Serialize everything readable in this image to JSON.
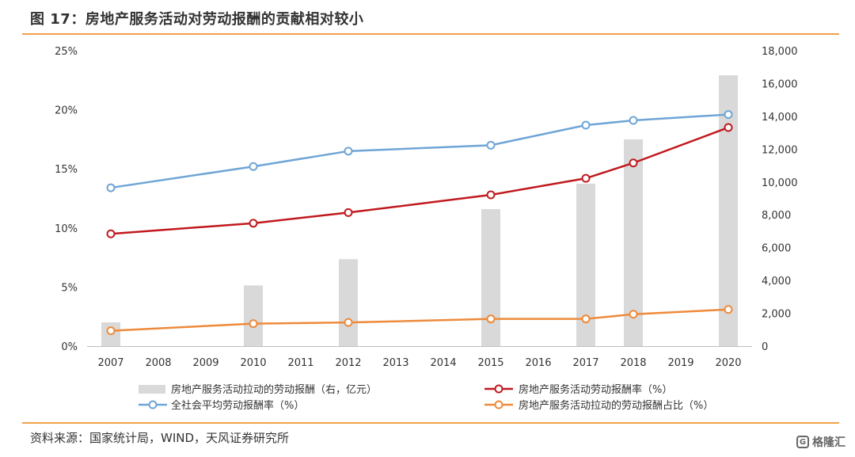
{
  "figure": {
    "title": "图 17：房地产服务活动对劳动报酬的贡献相对较小",
    "source": "资料来源：国家统计局，WIND，天风证券研究所",
    "watermark": "格隆汇",
    "colors": {
      "rule": "#f0a24a"
    }
  },
  "chart_data": {
    "type": "bar",
    "categories": [
      "2007",
      "2008",
      "2009",
      "2010",
      "2011",
      "2012",
      "2013",
      "2014",
      "2015",
      "2016",
      "2017",
      "2018",
      "2019",
      "2020"
    ],
    "x_ticks": [
      "2007",
      "2008",
      "2009",
      "2010",
      "2011",
      "2012",
      "2013",
      "2014",
      "2015",
      "2016",
      "2017",
      "2018",
      "2019",
      "2020"
    ],
    "y_left": {
      "ylim": [
        0,
        25
      ],
      "ticks": [
        "0%",
        "5%",
        "10%",
        "15%",
        "20%",
        "25%"
      ],
      "tick_values": [
        0,
        5,
        10,
        15,
        20,
        25
      ]
    },
    "y_right": {
      "ylim": [
        0,
        18000
      ],
      "ticks": [
        "0",
        "2,000",
        "4,000",
        "6,000",
        "8,000",
        "10,000",
        "12,000",
        "14,000",
        "16,000",
        "18,000"
      ],
      "tick_values": [
        0,
        2000,
        4000,
        6000,
        8000,
        10000,
        12000,
        14000,
        16000,
        18000
      ]
    },
    "grid": false,
    "legend_position": "bottom",
    "series": [
      {
        "name": "房地产服务活动拉动的劳动报酬（右，亿元）",
        "type": "bar",
        "axis": "right",
        "color": "#d9d9d9",
        "x": [
          "2007",
          "2010",
          "2012",
          "2015",
          "2017",
          "2018",
          "2020"
        ],
        "values": [
          1450,
          3700,
          5300,
          8350,
          9900,
          12600,
          16500
        ]
      },
      {
        "name": "房地产服务活动劳动报酬率（%）",
        "type": "line",
        "axis": "left",
        "color": "#c0191e",
        "x": [
          "2007",
          "2010",
          "2012",
          "2015",
          "2017",
          "2018",
          "2020"
        ],
        "values": [
          9.5,
          10.4,
          11.3,
          12.8,
          14.2,
          15.5,
          18.5
        ]
      },
      {
        "name": "全社会平均劳动报酬率（%）",
        "type": "line",
        "axis": "left",
        "color": "#6fa5d6",
        "x": [
          "2007",
          "2010",
          "2012",
          "2015",
          "2017",
          "2018",
          "2020"
        ],
        "values": [
          13.4,
          15.2,
          16.5,
          17.0,
          18.7,
          19.1,
          19.6
        ]
      },
      {
        "name": "房地产服务活动拉动的劳动报酬占比（%）",
        "type": "line",
        "axis": "left",
        "color": "#ee8a3a",
        "x": [
          "2007",
          "2010",
          "2012",
          "2015",
          "2017",
          "2018",
          "2020"
        ],
        "values": [
          1.3,
          1.9,
          2.0,
          2.3,
          2.3,
          2.7,
          3.1
        ]
      }
    ]
  }
}
